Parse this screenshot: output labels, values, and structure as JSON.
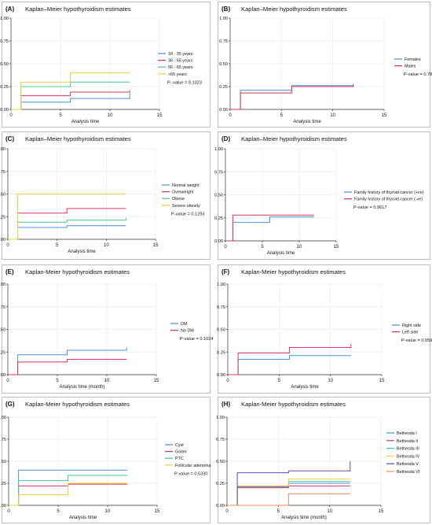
{
  "chart_data": [
    {
      "type": "line",
      "label": "(A)",
      "title": "Kaplan–Meier hypothyroidism estimates",
      "xlabel": "Analysis time",
      "ylabel": "",
      "xlim": [
        0,
        15
      ],
      "ylim": [
        0,
        1
      ],
      "xticks": [
        "0",
        "5",
        "10",
        "15"
      ],
      "yticks": [
        "0.00",
        "0.25",
        "0.50",
        "0.75",
        "1.00"
      ],
      "grid": true,
      "legend_position": "right",
      "pvalue": "P- value = 0.1023",
      "series": [
        {
          "name": "18 - 35 years",
          "color": "#4a90d9",
          "steps": [
            [
              0,
              0
            ],
            [
              1,
              0
            ],
            [
              1,
              0.08
            ],
            [
              6,
              0.08
            ],
            [
              6,
              0.12
            ],
            [
              12,
              0.12
            ],
            [
              12,
              0.18
            ]
          ]
        },
        {
          "name": "36 - 55 years",
          "color": "#e0325a",
          "steps": [
            [
              0,
              0
            ],
            [
              1,
              0
            ],
            [
              1,
              0.15
            ],
            [
              6,
              0.15
            ],
            [
              6,
              0.19
            ],
            [
              12,
              0.19
            ],
            [
              12,
              0.21
            ]
          ]
        },
        {
          "name": "56 - 65 years",
          "color": "#3fc89a",
          "steps": [
            [
              0,
              0
            ],
            [
              1,
              0
            ],
            [
              1,
              0.25
            ],
            [
              6,
              0.25
            ],
            [
              6,
              0.3
            ],
            [
              12,
              0.3
            ]
          ]
        },
        {
          "name": ">65 years",
          "color": "#f2cc3a",
          "steps": [
            [
              0,
              0
            ],
            [
              1,
              0
            ],
            [
              1,
              0.3
            ],
            [
              6,
              0.3
            ],
            [
              6,
              0.4
            ],
            [
              12,
              0.4
            ]
          ]
        }
      ]
    },
    {
      "type": "line",
      "label": "(B)",
      "title": "Kaplan–Meier hypothyroidism estimates",
      "xlabel": "Analysis time",
      "ylabel": "",
      "xlim": [
        0,
        15
      ],
      "ylim": [
        0,
        1
      ],
      "xticks": [
        "0",
        "5",
        "10",
        "15"
      ],
      "yticks": [
        "0.00",
        "0.25",
        "0.50",
        "0.75",
        "1.00"
      ],
      "grid": true,
      "legend_position": "right",
      "pvalue": "P-value = 0.7853",
      "series": [
        {
          "name": "Females",
          "color": "#4a90d9",
          "steps": [
            [
              0,
              0
            ],
            [
              1,
              0
            ],
            [
              1,
              0.21
            ],
            [
              6,
              0.21
            ],
            [
              6,
              0.26
            ],
            [
              12,
              0.26
            ],
            [
              12,
              0.28
            ]
          ]
        },
        {
          "name": "Males",
          "color": "#e0325a",
          "steps": [
            [
              0,
              0
            ],
            [
              1,
              0
            ],
            [
              1,
              0.18
            ],
            [
              6,
              0.18
            ],
            [
              6,
              0.25
            ],
            [
              12,
              0.25
            ],
            [
              12,
              0.27
            ]
          ]
        }
      ]
    },
    {
      "type": "line",
      "label": "(C)",
      "title": "Kaplan–Meier hypothyroidism estimates",
      "xlabel": "Analysis time",
      "ylabel": "",
      "xlim": [
        0,
        15
      ],
      "ylim": [
        0,
        1
      ],
      "xticks": [
        "0",
        "5",
        "10",
        "15"
      ],
      "yticks": [
        "0.00",
        "0.25",
        "0.50",
        "0.75",
        "1.00"
      ],
      "grid": true,
      "legend_position": "right",
      "pvalue": "P-value = 0.1293",
      "series": [
        {
          "name": "Normal weight",
          "color": "#4a90d9",
          "steps": [
            [
              0,
              0
            ],
            [
              1,
              0
            ],
            [
              1,
              0.13
            ],
            [
              6,
              0.13
            ],
            [
              6,
              0.15
            ],
            [
              12,
              0.15
            ]
          ]
        },
        {
          "name": "Overweight",
          "color": "#e0325a",
          "steps": [
            [
              0,
              0
            ],
            [
              1,
              0
            ],
            [
              1,
              0.29
            ],
            [
              6,
              0.29
            ],
            [
              6,
              0.34
            ],
            [
              12,
              0.34
            ]
          ]
        },
        {
          "name": "Obese",
          "color": "#3fc89a",
          "steps": [
            [
              0,
              0
            ],
            [
              1,
              0
            ],
            [
              1,
              0.19
            ],
            [
              6,
              0.19
            ],
            [
              6,
              0.21
            ],
            [
              12,
              0.21
            ],
            [
              12,
              0.24
            ]
          ]
        },
        {
          "name": "Severe obesity",
          "color": "#f2cc3a",
          "steps": [
            [
              0,
              0
            ],
            [
              1,
              0
            ],
            [
              1,
              0.5
            ],
            [
              12,
              0.5
            ]
          ]
        }
      ]
    },
    {
      "type": "line",
      "label": "(D)",
      "title": "Kaplan–Meier hypothyroidism estimates",
      "xlabel": "Analysis time",
      "ylabel": "",
      "xlim": [
        0,
        15
      ],
      "ylim": [
        0,
        1
      ],
      "xticks": [
        "0",
        "5",
        "10",
        "15"
      ],
      "yticks": [
        "0.00",
        "0.25",
        "0.50",
        "0.75",
        "1.00"
      ],
      "grid": true,
      "legend_position": "right",
      "pvalue": "P-value = 0.9617",
      "series": [
        {
          "name": "Family history of thyroid cancer (+ve)",
          "color": "#4a90d9",
          "steps": [
            [
              0,
              0
            ],
            [
              1,
              0
            ],
            [
              1,
              0.2
            ],
            [
              6,
              0.2
            ],
            [
              6,
              0.26
            ],
            [
              12,
              0.26
            ]
          ]
        },
        {
          "name": "Family history of thyroid cancer (-ve)",
          "color": "#e0325a",
          "steps": [
            [
              0,
              0
            ],
            [
              1,
              0
            ],
            [
              1,
              0.28
            ],
            [
              12,
              0.28
            ]
          ]
        }
      ]
    },
    {
      "type": "line",
      "label": "(E)",
      "title": "Kaplan-Meier hypothyroidism estimates",
      "xlabel": "Analysis time (month)",
      "ylabel": "",
      "xlim": [
        0,
        15
      ],
      "ylim": [
        0,
        1
      ],
      "xticks": [
        "0",
        "5",
        "10",
        "15"
      ],
      "yticks": [
        "0.00",
        "0.25",
        "0.50",
        "0.75",
        "1.00"
      ],
      "grid": true,
      "legend_position": "right",
      "pvalue": "P-value = 0.1024",
      "series": [
        {
          "name": "DM",
          "color": "#4a90d9",
          "steps": [
            [
              0,
              0
            ],
            [
              1,
              0
            ],
            [
              1,
              0.22
            ],
            [
              6,
              0.22
            ],
            [
              6,
              0.27
            ],
            [
              12,
              0.27
            ],
            [
              12,
              0.3
            ]
          ]
        },
        {
          "name": "No DM",
          "color": "#e0325a",
          "steps": [
            [
              0,
              0
            ],
            [
              1,
              0
            ],
            [
              1,
              0.14
            ],
            [
              6,
              0.14
            ],
            [
              6,
              0.17
            ],
            [
              12,
              0.17
            ]
          ]
        }
      ]
    },
    {
      "type": "line",
      "label": "(F)",
      "title": "Kaplan-Meier hypothyroidism estimates",
      "xlabel": "Analysis time",
      "ylabel": "",
      "xlim": [
        0,
        15
      ],
      "ylim": [
        0,
        1
      ],
      "xticks": [
        "0",
        "5",
        "10",
        "15"
      ],
      "yticks": [
        "0.00",
        "0.25",
        "0.50",
        "0.75",
        "1.00"
      ],
      "grid": true,
      "legend_position": "right",
      "pvalue": "P-value = 0.0594",
      "series": [
        {
          "name": "Right side",
          "color": "#4a90d9",
          "steps": [
            [
              0,
              0
            ],
            [
              1,
              0
            ],
            [
              1,
              0.17
            ],
            [
              6,
              0.17
            ],
            [
              6,
              0.21
            ],
            [
              12,
              0.21
            ]
          ]
        },
        {
          "name": "Left side",
          "color": "#e0325a",
          "steps": [
            [
              0,
              0
            ],
            [
              1,
              0
            ],
            [
              1,
              0.24
            ],
            [
              6,
              0.24
            ],
            [
              6,
              0.3
            ],
            [
              12,
              0.3
            ],
            [
              12,
              0.34
            ]
          ]
        }
      ]
    },
    {
      "type": "line",
      "label": "(G)",
      "title": "Kaplan-Meier hypothyroidism estimates",
      "xlabel": "Analysis time",
      "ylabel": "",
      "xlim": [
        0,
        15
      ],
      "ylim": [
        0,
        1
      ],
      "xticks": [
        "0",
        "5",
        "10",
        "15"
      ],
      "yticks": [
        "0.00",
        "0.25",
        "0.50",
        "0.75",
        "1.00"
      ],
      "grid": true,
      "legend_position": "right",
      "pvalue": "P-value = 0.5330",
      "series": [
        {
          "name": "Cyst",
          "color": "#4a90d9",
          "steps": [
            [
              0,
              0
            ],
            [
              1,
              0
            ],
            [
              1,
              0.4
            ],
            [
              12,
              0.4
            ]
          ]
        },
        {
          "name": "Goiter",
          "color": "#e0325a",
          "steps": [
            [
              0,
              0
            ],
            [
              1,
              0
            ],
            [
              1,
              0.22
            ],
            [
              6,
              0.22
            ],
            [
              6,
              0.24
            ],
            [
              12,
              0.24
            ]
          ]
        },
        {
          "name": "PTC",
          "color": "#3fc89a",
          "steps": [
            [
              0,
              0
            ],
            [
              1,
              0
            ],
            [
              1,
              0.28
            ],
            [
              6,
              0.28
            ],
            [
              6,
              0.34
            ],
            [
              12,
              0.34
            ]
          ]
        },
        {
          "name": "Follicular adenoma",
          "color": "#f2cc3a",
          "steps": [
            [
              0,
              0
            ],
            [
              1,
              0
            ],
            [
              1,
              0.12
            ],
            [
              6,
              0.12
            ],
            [
              6,
              0.25
            ],
            [
              12,
              0.25
            ]
          ]
        }
      ]
    },
    {
      "type": "line",
      "label": "(H)",
      "title": "Kaplan-Meier hypothyroidism estimates",
      "xlabel": "Analysis time (month)",
      "ylabel": "",
      "xlim": [
        0,
        15
      ],
      "ylim": [
        0,
        1
      ],
      "xticks": [
        "0",
        "5",
        "10",
        "15"
      ],
      "yticks": [
        "0.00",
        "0.25",
        "0.50",
        "0.75",
        "1.00"
      ],
      "grid": true,
      "legend_position": "right",
      "pvalue": "",
      "series": [
        {
          "name": "Bethesda I",
          "color": "#4a90d9",
          "steps": [
            [
              0,
              0
            ],
            [
              1,
              0
            ],
            [
              1,
              0.21
            ],
            [
              6,
              0.21
            ],
            [
              6,
              0.25
            ],
            [
              12,
              0.25
            ]
          ]
        },
        {
          "name": "Bethesda II",
          "color": "#e0325a",
          "steps": [
            [
              0,
              0
            ],
            [
              1,
              0
            ],
            [
              1,
              0.2
            ],
            [
              6,
              0.2
            ],
            [
              6,
              0.22
            ],
            [
              12,
              0.22
            ]
          ]
        },
        {
          "name": "Bethesda III",
          "color": "#3fc89a",
          "steps": [
            [
              0,
              0
            ],
            [
              1,
              0
            ],
            [
              1,
              0.22
            ],
            [
              6,
              0.22
            ],
            [
              6,
              0.27
            ],
            [
              12,
              0.27
            ]
          ]
        },
        {
          "name": "Bethesda IV",
          "color": "#f2cc3a",
          "steps": [
            [
              0,
              0
            ],
            [
              1,
              0
            ],
            [
              1,
              0.22
            ],
            [
              6,
              0.22
            ],
            [
              6,
              0.3
            ],
            [
              12,
              0.3
            ]
          ]
        },
        {
          "name": "Bethesda V",
          "color": "#5a4bc6",
          "steps": [
            [
              0,
              0
            ],
            [
              1,
              0
            ],
            [
              1,
              0.37
            ],
            [
              6,
              0.37
            ],
            [
              6,
              0.39
            ],
            [
              12,
              0.39
            ],
            [
              12,
              0.5
            ]
          ]
        },
        {
          "name": "Bethesda VI",
          "color": "#f28a5a",
          "steps": [
            [
              0,
              0
            ],
            [
              6,
              0
            ],
            [
              6,
              0.13
            ],
            [
              12,
              0.13
            ]
          ]
        }
      ]
    }
  ]
}
